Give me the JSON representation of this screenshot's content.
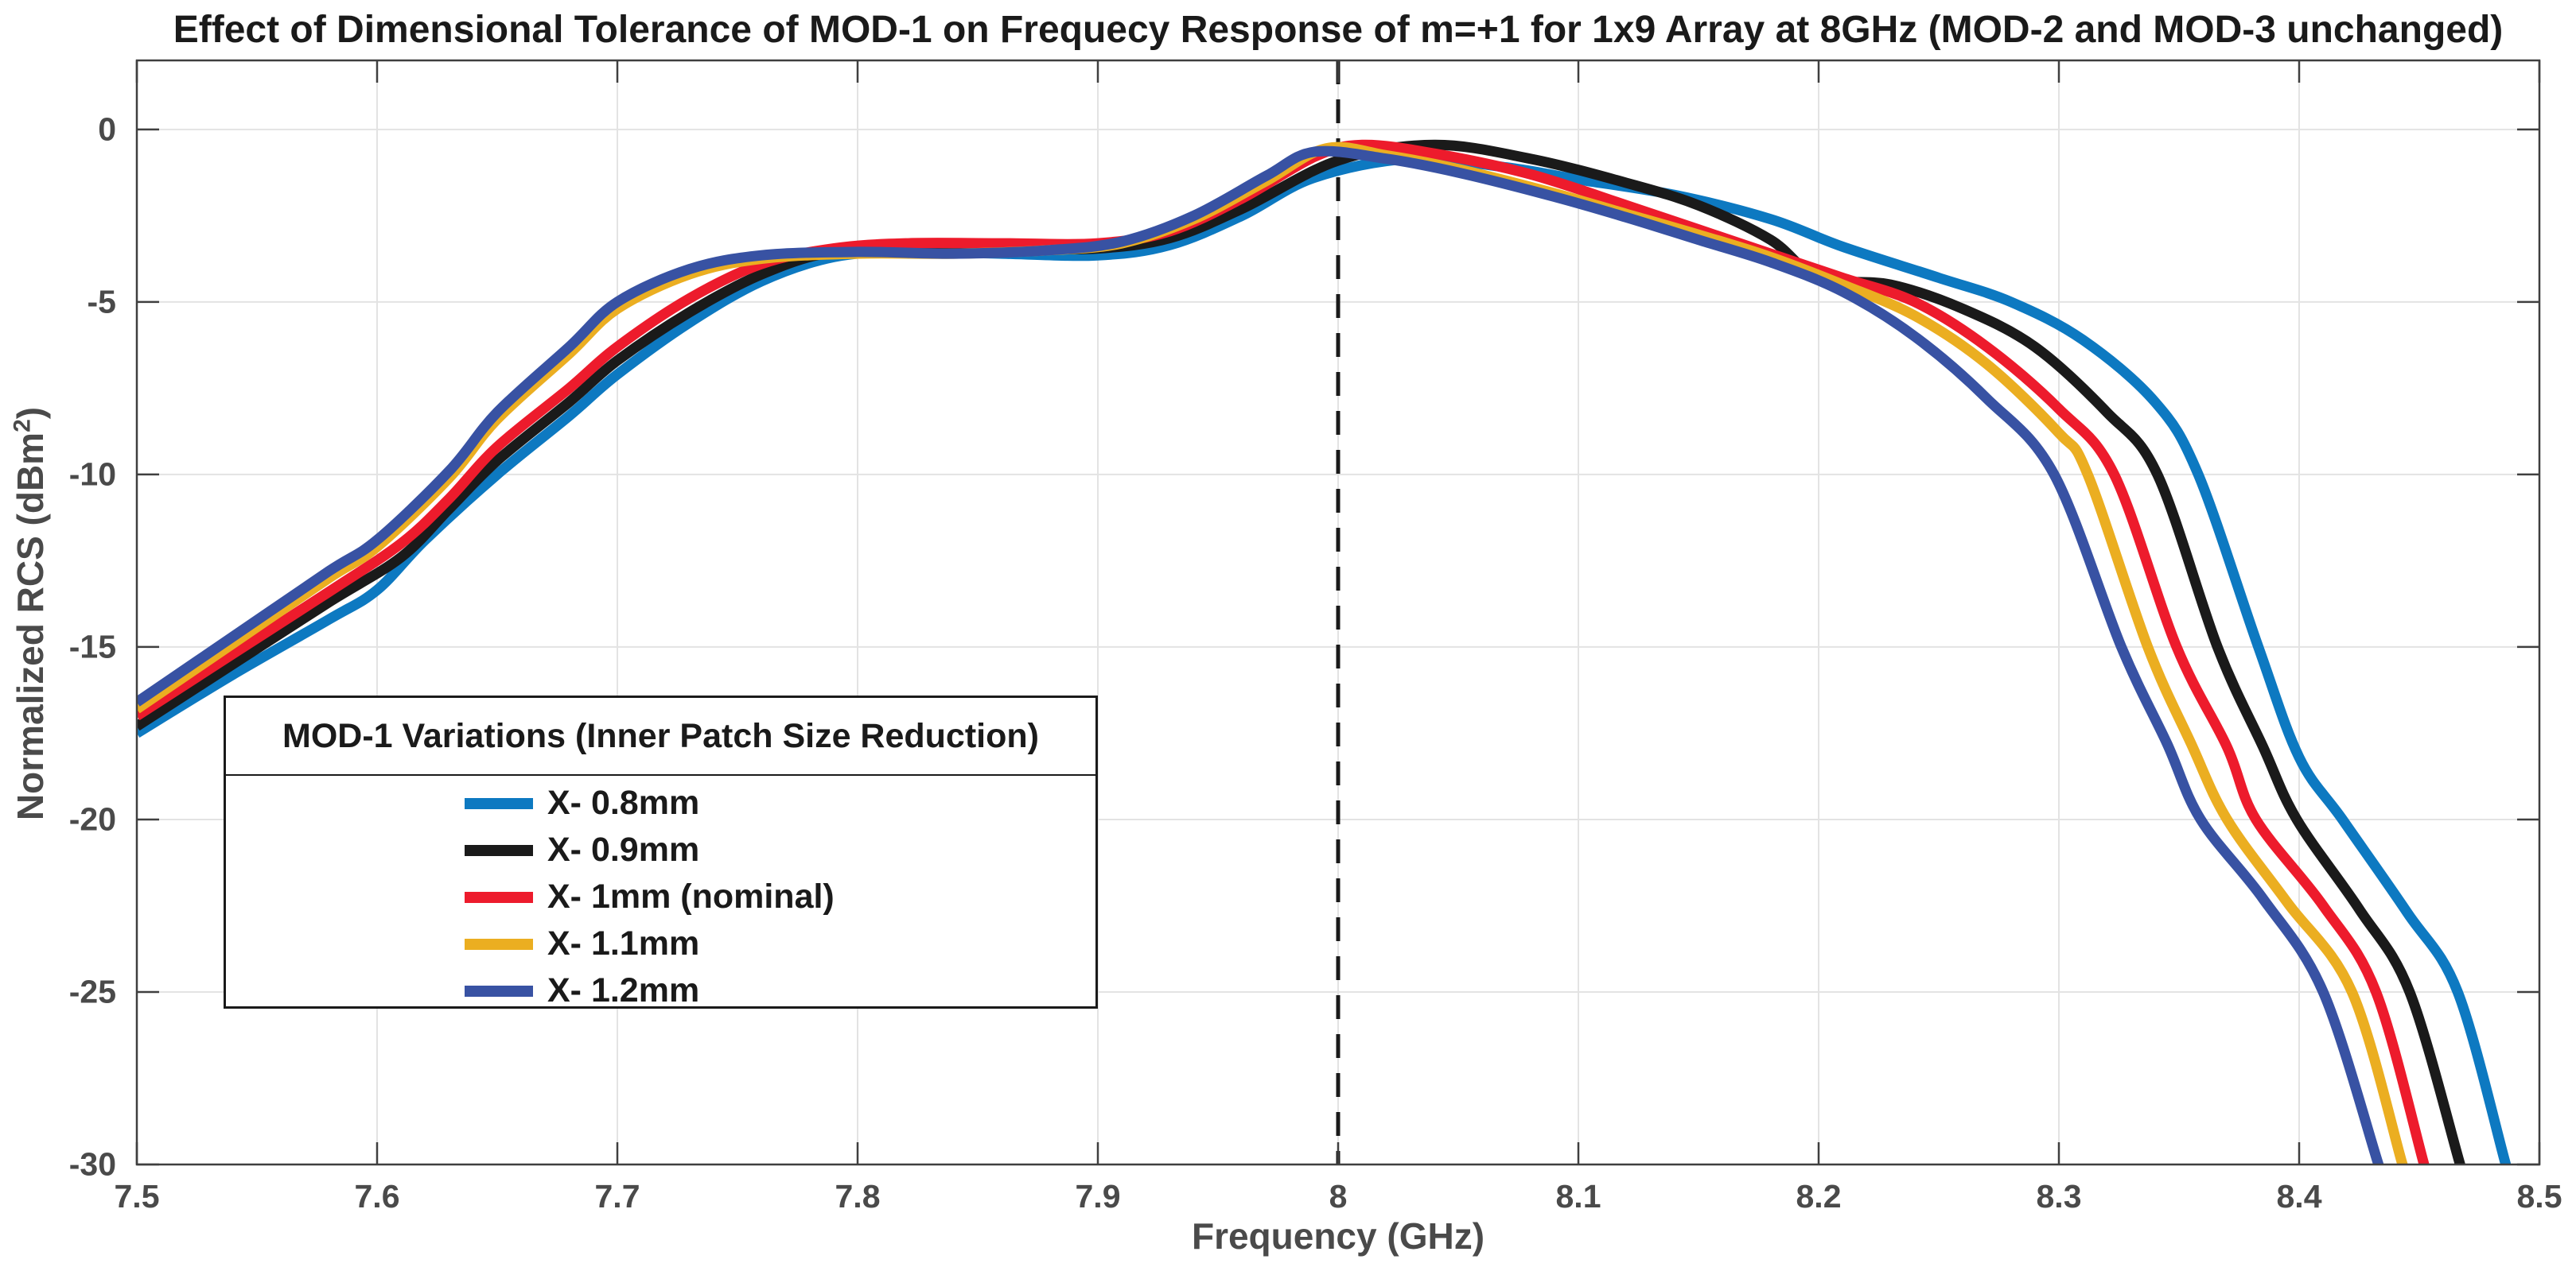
{
  "title": "Effect of Dimensional Tolerance of MOD-1 on Frequecy Response of m=+1 for 1x9 Array at 8GHz (MOD-2 and MOD-3 unchanged)",
  "axes": {
    "xlabel": "Frequency (GHz)",
    "ylabel_pre": "Normalized RCS (dBm",
    "ylabel_sup": "2",
    "ylabel_post": ")",
    "x_tick_labels": [
      "7.5",
      "7.6",
      "7.7",
      "7.8",
      "7.9",
      "8",
      "8.1",
      "8.2",
      "8.3",
      "8.4",
      "8.5"
    ],
    "y_tick_labels": [
      "0",
      "-5",
      "-10",
      "-15",
      "-20",
      "-25",
      "-30"
    ]
  },
  "colors": {
    "axis": "#3f3f3f",
    "tick_text": "#4a4a4a",
    "grid": "#e3e3e3",
    "dashed_marker": "#1a1a1a",
    "background": "#ffffff"
  },
  "chart_data": {
    "type": "line",
    "title": "Effect of Dimensional Tolerance of MOD-1 on Frequecy Response of m=+1 for 1x9 Array at 8GHz (MOD-2 and MOD-3 unchanged)",
    "xlabel": "Frequency (GHz)",
    "ylabel": "Normalized RCS (dBm²)",
    "xlim": [
      7.5,
      8.5
    ],
    "ylim": [
      -30,
      2
    ],
    "x_ticks": [
      7.5,
      7.6,
      7.7,
      7.8,
      7.9,
      8.0,
      8.1,
      8.2,
      8.3,
      8.4,
      8.5
    ],
    "y_ticks": [
      0,
      -5,
      -10,
      -15,
      -20,
      -25,
      -30
    ],
    "grid": true,
    "annotations": [
      {
        "type": "vline",
        "x": 8.0,
        "line_style": "dashed",
        "color": "#1a1a1a"
      }
    ],
    "legend": {
      "title": "MOD-1 Variations (Inner Patch Size Reduction)",
      "position": "inside-left-middle"
    },
    "series": [
      {
        "name": "X- 0.8mm",
        "color": "#0d79c1",
        "points": [
          [
            7.5,
            -17.5
          ],
          [
            7.54,
            -15.8
          ],
          [
            7.58,
            -14.2
          ],
          [
            7.6,
            -13.35
          ],
          [
            7.62,
            -11.9
          ],
          [
            7.65,
            -10.0
          ],
          [
            7.68,
            -8.3
          ],
          [
            7.7,
            -7.1
          ],
          [
            7.73,
            -5.6
          ],
          [
            7.76,
            -4.4
          ],
          [
            7.79,
            -3.7
          ],
          [
            7.82,
            -3.55
          ],
          [
            7.86,
            -3.6
          ],
          [
            7.9,
            -3.65
          ],
          [
            7.93,
            -3.35
          ],
          [
            7.96,
            -2.5
          ],
          [
            7.99,
            -1.4
          ],
          [
            8.03,
            -0.85
          ],
          [
            8.07,
            -1.1
          ],
          [
            8.1,
            -1.45
          ],
          [
            8.14,
            -1.9
          ],
          [
            8.18,
            -2.6
          ],
          [
            8.21,
            -3.4
          ],
          [
            8.25,
            -4.3
          ],
          [
            8.28,
            -5.0
          ],
          [
            8.31,
            -6.1
          ],
          [
            8.34,
            -7.9
          ],
          [
            8.358,
            -10
          ],
          [
            8.383,
            -15
          ],
          [
            8.4,
            -18.2
          ],
          [
            8.418,
            -20
          ],
          [
            8.445,
            -22.7
          ],
          [
            8.466,
            -25
          ],
          [
            8.486,
            -30
          ]
        ]
      },
      {
        "name": "X- 0.9mm",
        "color": "#1a1a1a",
        "points": [
          [
            7.5,
            -17.3
          ],
          [
            7.54,
            -15.5
          ],
          [
            7.58,
            -13.7
          ],
          [
            7.61,
            -12.4
          ],
          [
            7.63,
            -11.0
          ],
          [
            7.65,
            -9.6
          ],
          [
            7.68,
            -7.9
          ],
          [
            7.7,
            -6.7
          ],
          [
            7.73,
            -5.3
          ],
          [
            7.76,
            -4.2
          ],
          [
            7.79,
            -3.55
          ],
          [
            7.83,
            -3.45
          ],
          [
            7.87,
            -3.45
          ],
          [
            7.9,
            -3.45
          ],
          [
            7.93,
            -3.15
          ],
          [
            7.96,
            -2.3
          ],
          [
            8.0,
            -0.9
          ],
          [
            8.04,
            -0.45
          ],
          [
            8.08,
            -0.85
          ],
          [
            8.12,
            -1.55
          ],
          [
            8.15,
            -2.2
          ],
          [
            8.18,
            -3.2
          ],
          [
            8.2,
            -4.3
          ],
          [
            8.23,
            -4.5
          ],
          [
            8.26,
            -5.2
          ],
          [
            8.29,
            -6.3
          ],
          [
            8.32,
            -8.2
          ],
          [
            8.341,
            -10
          ],
          [
            8.366,
            -15
          ],
          [
            8.385,
            -17.9
          ],
          [
            8.399,
            -20
          ],
          [
            8.425,
            -22.6
          ],
          [
            8.446,
            -25
          ],
          [
            8.467,
            -30
          ]
        ]
      },
      {
        "name": "X- 1mm (nominal)",
        "color": "#ed1b2c",
        "points": [
          [
            7.5,
            -17.0
          ],
          [
            7.54,
            -15.2
          ],
          [
            7.58,
            -13.4
          ],
          [
            7.61,
            -12.0
          ],
          [
            7.63,
            -10.7
          ],
          [
            7.65,
            -9.2
          ],
          [
            7.68,
            -7.5
          ],
          [
            7.7,
            -6.3
          ],
          [
            7.73,
            -4.9
          ],
          [
            7.76,
            -3.9
          ],
          [
            7.79,
            -3.45
          ],
          [
            7.82,
            -3.3
          ],
          [
            7.86,
            -3.3
          ],
          [
            7.9,
            -3.3
          ],
          [
            7.93,
            -2.95
          ],
          [
            7.96,
            -2.0
          ],
          [
            7.99,
            -0.8
          ],
          [
            8.01,
            -0.45
          ],
          [
            8.04,
            -0.7
          ],
          [
            8.08,
            -1.3
          ],
          [
            8.12,
            -2.2
          ],
          [
            8.15,
            -2.9
          ],
          [
            8.18,
            -3.6
          ],
          [
            8.21,
            -4.3
          ],
          [
            8.24,
            -5.0
          ],
          [
            8.27,
            -6.3
          ],
          [
            8.3,
            -8.1
          ],
          [
            8.323,
            -10
          ],
          [
            8.349,
            -15
          ],
          [
            8.37,
            -17.9
          ],
          [
            8.382,
            -20
          ],
          [
            8.41,
            -22.5
          ],
          [
            8.432,
            -25
          ],
          [
            8.452,
            -30
          ]
        ]
      },
      {
        "name": "X- 1.1mm",
        "color": "#ebae21",
        "points": [
          [
            7.5,
            -16.8
          ],
          [
            7.54,
            -14.9
          ],
          [
            7.58,
            -13.0
          ],
          [
            7.6,
            -12.1
          ],
          [
            7.63,
            -10.1
          ],
          [
            7.65,
            -8.4
          ],
          [
            7.68,
            -6.5
          ],
          [
            7.7,
            -5.2
          ],
          [
            7.73,
            -4.2
          ],
          [
            7.76,
            -3.75
          ],
          [
            7.8,
            -3.6
          ],
          [
            7.84,
            -3.6
          ],
          [
            7.88,
            -3.5
          ],
          [
            7.91,
            -3.3
          ],
          [
            7.94,
            -2.6
          ],
          [
            7.97,
            -1.5
          ],
          [
            7.995,
            -0.55
          ],
          [
            8.02,
            -0.75
          ],
          [
            8.05,
            -1.15
          ],
          [
            8.09,
            -1.85
          ],
          [
            8.12,
            -2.45
          ],
          [
            8.15,
            -3.05
          ],
          [
            8.18,
            -3.7
          ],
          [
            8.21,
            -4.5
          ],
          [
            8.24,
            -5.4
          ],
          [
            8.27,
            -6.8
          ],
          [
            8.3,
            -8.8
          ],
          [
            8.312,
            -10
          ],
          [
            8.337,
            -15
          ],
          [
            8.355,
            -17.8
          ],
          [
            8.37,
            -20
          ],
          [
            8.395,
            -22.4
          ],
          [
            8.422,
            -25
          ],
          [
            8.443,
            -30
          ]
        ]
      },
      {
        "name": "X- 1.2mm",
        "color": "#3852a3",
        "points": [
          [
            7.5,
            -16.6
          ],
          [
            7.54,
            -14.7
          ],
          [
            7.58,
            -12.8
          ],
          [
            7.6,
            -11.9
          ],
          [
            7.63,
            -9.9
          ],
          [
            7.65,
            -8.2
          ],
          [
            7.68,
            -6.3
          ],
          [
            7.7,
            -5.0
          ],
          [
            7.73,
            -4.05
          ],
          [
            7.76,
            -3.65
          ],
          [
            7.8,
            -3.55
          ],
          [
            7.84,
            -3.6
          ],
          [
            7.88,
            -3.5
          ],
          [
            7.91,
            -3.25
          ],
          [
            7.94,
            -2.5
          ],
          [
            7.97,
            -1.35
          ],
          [
            7.99,
            -0.65
          ],
          [
            8.02,
            -0.85
          ],
          [
            8.05,
            -1.25
          ],
          [
            8.09,
            -1.95
          ],
          [
            8.12,
            -2.55
          ],
          [
            8.15,
            -3.2
          ],
          [
            8.18,
            -3.85
          ],
          [
            8.21,
            -4.7
          ],
          [
            8.24,
            -6.0
          ],
          [
            8.27,
            -7.8
          ],
          [
            8.298,
            -10
          ],
          [
            8.326,
            -15
          ],
          [
            8.345,
            -17.8
          ],
          [
            8.359,
            -20
          ],
          [
            8.385,
            -22.3
          ],
          [
            8.41,
            -25
          ],
          [
            8.433,
            -30
          ]
        ]
      }
    ]
  }
}
